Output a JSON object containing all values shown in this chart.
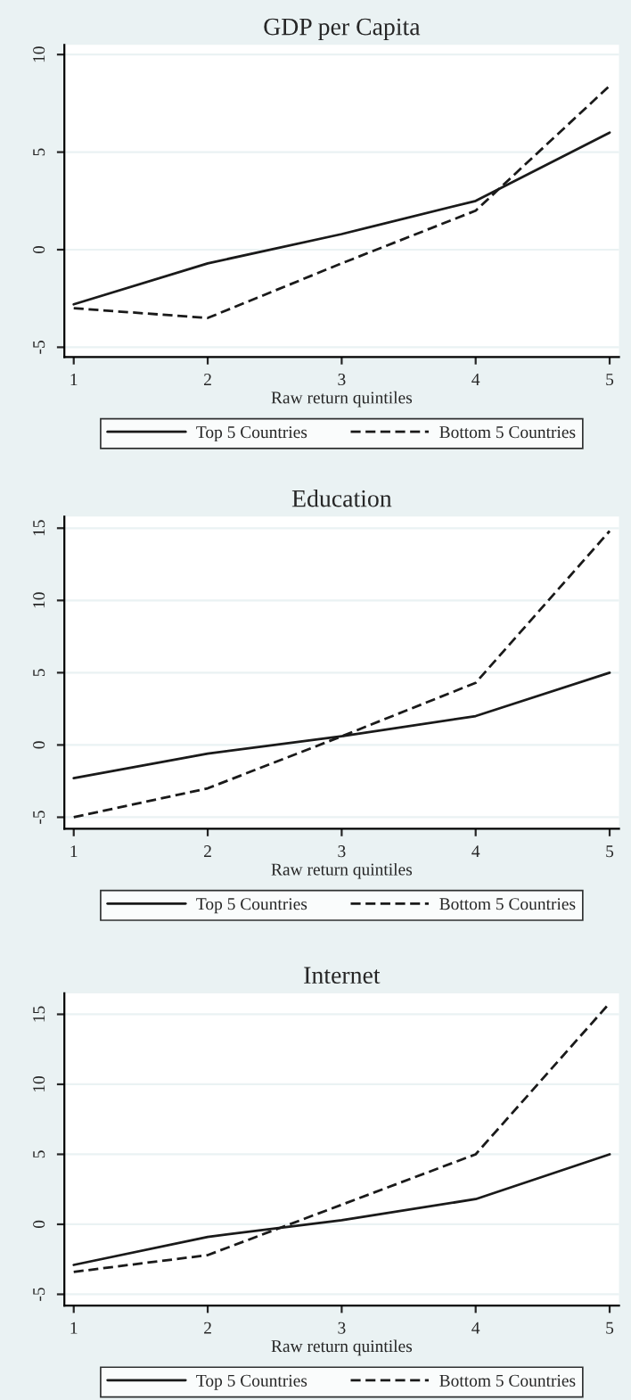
{
  "chart_data": [
    {
      "type": "line",
      "title": "GDP per Capita",
      "xlabel": "Raw return quintiles",
      "x": [
        1,
        2,
        3,
        4,
        5
      ],
      "xlim": [
        0.93,
        5.07
      ],
      "xticks": [
        1,
        2,
        3,
        4,
        5
      ],
      "ylim": [
        -5.5,
        10.5
      ],
      "yticks": [
        -5,
        0,
        5,
        10
      ],
      "grid": "y",
      "legend": "bottom",
      "series": [
        {
          "name": "Top 5 Countries",
          "color": "#1a1a1a",
          "line_style": "solid",
          "values": [
            -2.8,
            -0.7,
            0.8,
            2.5,
            6.0
          ]
        },
        {
          "name": "Bottom 5 Countries",
          "color": "#1a1a1a",
          "line_style": "dashed",
          "values": [
            -3.0,
            -3.5,
            -0.7,
            2.0,
            8.4
          ]
        }
      ]
    },
    {
      "type": "line",
      "title": "Education",
      "xlabel": "Raw return quintiles",
      "x": [
        1,
        2,
        3,
        4,
        5
      ],
      "xlim": [
        0.93,
        5.07
      ],
      "xticks": [
        1,
        2,
        3,
        4,
        5
      ],
      "ylim": [
        -5.8,
        15.8
      ],
      "yticks": [
        -5,
        0,
        5,
        10,
        15
      ],
      "grid": "y",
      "legend": "bottom",
      "series": [
        {
          "name": "Top 5 Countries",
          "color": "#1a1a1a",
          "line_style": "solid",
          "values": [
            -2.3,
            -0.6,
            0.6,
            2.0,
            5.0
          ]
        },
        {
          "name": "Bottom 5 Countries",
          "color": "#1a1a1a",
          "line_style": "dashed",
          "values": [
            -5.0,
            -3.0,
            0.6,
            4.3,
            14.8
          ]
        }
      ]
    },
    {
      "type": "line",
      "title": "Internet",
      "xlabel": "Raw return quintiles",
      "x": [
        1,
        2,
        3,
        4,
        5
      ],
      "xlim": [
        0.93,
        5.07
      ],
      "xticks": [
        1,
        2,
        3,
        4,
        5
      ],
      "ylim": [
        -5.8,
        16.5
      ],
      "yticks": [
        -5,
        0,
        5,
        10,
        15
      ],
      "grid": "y",
      "legend": "bottom",
      "series": [
        {
          "name": "Top 5 Countries",
          "color": "#1a1a1a",
          "line_style": "solid",
          "values": [
            -2.9,
            -0.9,
            0.3,
            1.8,
            5.0
          ]
        },
        {
          "name": "Bottom 5 Countries",
          "color": "#1a1a1a",
          "line_style": "dashed",
          "values": [
            -3.4,
            -2.2,
            1.4,
            5.0,
            15.8
          ]
        }
      ]
    }
  ]
}
